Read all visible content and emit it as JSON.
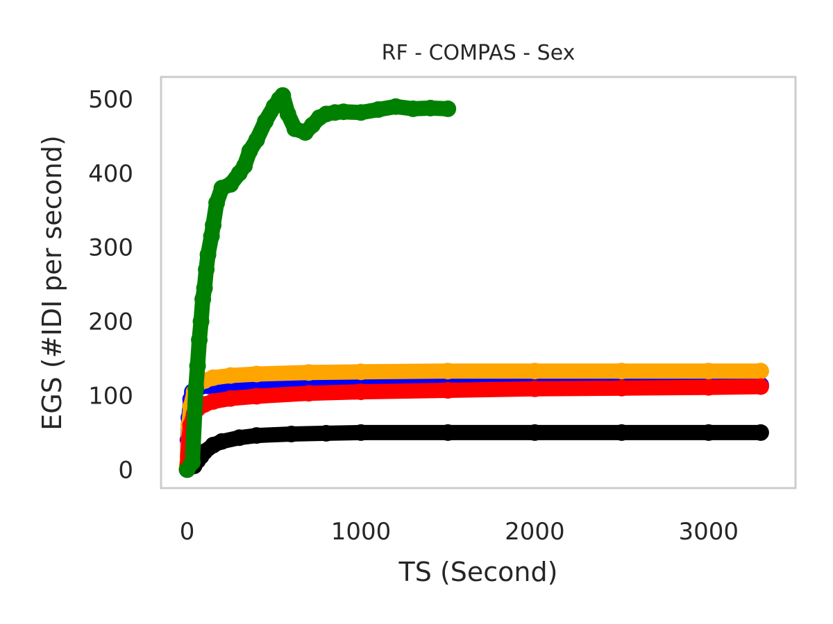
{
  "chart_data": {
    "type": "line",
    "title": "RF - COMPAS - Sex",
    "xlabel": "TS (Second)",
    "ylabel": "EGS (#IDI  per second)",
    "xlim": [
      -150,
      3500
    ],
    "ylim": [
      -25,
      530
    ],
    "xticks": [
      0,
      1000,
      2000,
      3000
    ],
    "yticks": [
      0,
      100,
      200,
      300,
      400,
      500
    ],
    "grid": false,
    "legend": "none",
    "series": [
      {
        "color": "#0000ff",
        "x": [
          0,
          5,
          10,
          20,
          30,
          50,
          80,
          120,
          200,
          400,
          800,
          1500,
          2500,
          3300
        ],
        "y": [
          0,
          40,
          70,
          95,
          105,
          110,
          112,
          113,
          113,
          113,
          113,
          114,
          114,
          114
        ]
      },
      {
        "color": "#ffa500",
        "x": [
          0,
          10,
          20,
          40,
          60,
          100,
          150,
          250,
          400,
          700,
          1000,
          1500,
          2000,
          2500,
          3000,
          3300
        ],
        "y": [
          5,
          60,
          85,
          105,
          115,
          120,
          124,
          127,
          129,
          131,
          132,
          133,
          133,
          133,
          133,
          133
        ]
      },
      {
        "color": "#ff0000",
        "x": [
          0,
          10,
          20,
          40,
          60,
          100,
          150,
          250,
          400,
          700,
          1000,
          1500,
          2000,
          2500,
          3000,
          3300
        ],
        "y": [
          0,
          40,
          60,
          75,
          82,
          88,
          92,
          96,
          99,
          103,
          105,
          107,
          109,
          110,
          111,
          112
        ]
      },
      {
        "color": "#000000",
        "x": [
          40,
          60,
          80,
          100,
          150,
          200,
          300,
          400,
          600,
          800,
          1000,
          1500,
          2000,
          2500,
          3000,
          3300
        ],
        "y": [
          5,
          12,
          18,
          24,
          33,
          38,
          43,
          46,
          48,
          49,
          50,
          50,
          50,
          50,
          50,
          50
        ]
      },
      {
        "color": "#008000",
        "x": [
          0,
          30,
          50,
          60,
          70,
          80,
          90,
          100,
          110,
          120,
          140,
          150,
          170,
          200,
          250,
          300,
          330,
          360,
          400,
          450,
          500,
          530,
          550,
          580,
          620,
          680,
          720,
          760,
          800,
          850,
          900,
          1000,
          1100,
          1200,
          1300,
          1400,
          1500
        ],
        "y": [
          0,
          10,
          110,
          140,
          175,
          200,
          230,
          245,
          270,
          290,
          315,
          330,
          360,
          380,
          385,
          400,
          410,
          430,
          445,
          470,
          490,
          500,
          505,
          480,
          460,
          455,
          465,
          475,
          480,
          482,
          483,
          482,
          486,
          490,
          487,
          488,
          487
        ]
      }
    ]
  }
}
